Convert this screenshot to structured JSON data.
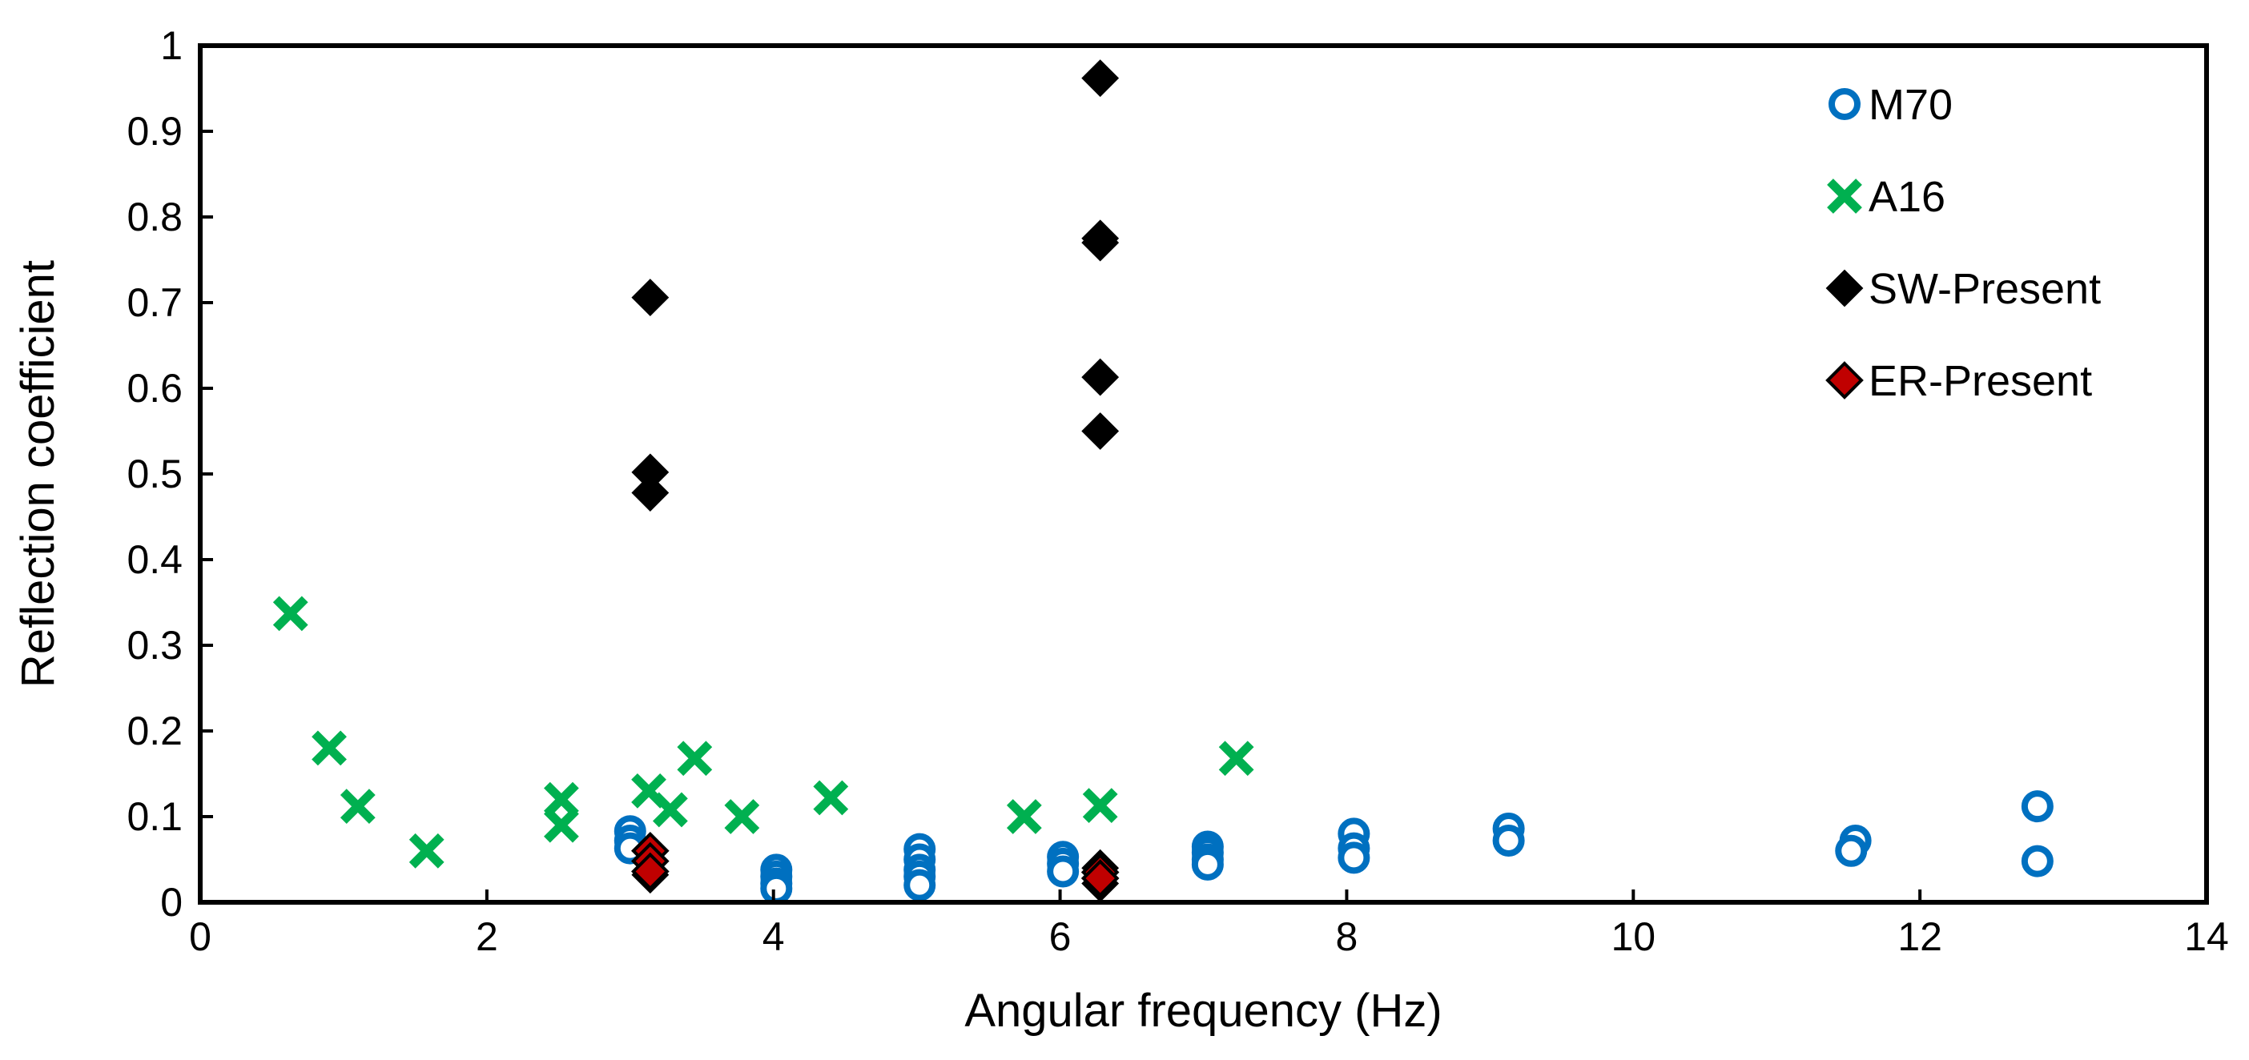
{
  "chart_data": {
    "type": "scatter",
    "xlabel": "Angular frequency (Hz)",
    "ylabel": "Reflection coefficient",
    "xlim": [
      0,
      14
    ],
    "ylim": [
      0,
      1
    ],
    "x_ticks": [
      0,
      2,
      4,
      6,
      8,
      10,
      12,
      14
    ],
    "y_ticks": [
      0,
      0.1,
      0.2,
      0.3,
      0.4,
      0.5,
      0.6,
      0.7,
      0.8,
      0.9,
      1
    ],
    "x_tick_labels": [
      "0",
      "2",
      "4",
      "6",
      "8",
      "10",
      "12",
      "14"
    ],
    "y_tick_labels": [
      "0",
      "0.1",
      "0.2",
      "0.3",
      "0.4",
      "0.5",
      "0.6",
      "0.7",
      "0.8",
      "0.9",
      "1"
    ],
    "grid": false,
    "legend_position": "top-right",
    "series": [
      {
        "name": "M70",
        "marker": "open-circle",
        "color": "#0070C0",
        "points": [
          [
            3.0,
            0.083
          ],
          [
            3.0,
            0.072
          ],
          [
            3.0,
            0.063
          ],
          [
            4.02,
            0.038
          ],
          [
            4.02,
            0.03
          ],
          [
            4.02,
            0.022
          ],
          [
            4.02,
            0.016
          ],
          [
            5.02,
            0.062
          ],
          [
            5.02,
            0.05
          ],
          [
            5.02,
            0.038
          ],
          [
            5.02,
            0.03
          ],
          [
            5.02,
            0.02
          ],
          [
            6.02,
            0.053
          ],
          [
            6.02,
            0.045
          ],
          [
            6.02,
            0.036
          ],
          [
            7.03,
            0.065
          ],
          [
            7.03,
            0.058
          ],
          [
            7.03,
            0.05
          ],
          [
            7.03,
            0.044
          ],
          [
            8.05,
            0.08
          ],
          [
            8.05,
            0.063
          ],
          [
            8.05,
            0.052
          ],
          [
            9.13,
            0.086
          ],
          [
            9.13,
            0.072
          ],
          [
            11.55,
            0.072
          ],
          [
            11.52,
            0.06
          ],
          [
            12.82,
            0.112
          ],
          [
            12.82,
            0.048
          ]
        ]
      },
      {
        "name": "A16",
        "marker": "x",
        "color": "#00B050",
        "points": [
          [
            0.63,
            0.337
          ],
          [
            0.9,
            0.18
          ],
          [
            1.1,
            0.112
          ],
          [
            1.58,
            0.06
          ],
          [
            2.52,
            0.12
          ],
          [
            2.52,
            0.09
          ],
          [
            3.13,
            0.13
          ],
          [
            3.28,
            0.108
          ],
          [
            3.45,
            0.168
          ],
          [
            3.78,
            0.1
          ],
          [
            4.4,
            0.122
          ],
          [
            5.75,
            0.1
          ],
          [
            6.28,
            0.113
          ],
          [
            7.23,
            0.168
          ]
        ]
      },
      {
        "name": "SW-Present",
        "marker": "diamond",
        "color": "#000000",
        "points": [
          [
            3.14,
            0.706
          ],
          [
            3.14,
            0.502
          ],
          [
            3.14,
            0.478
          ],
          [
            3.14,
            0.032
          ],
          [
            6.28,
            0.962
          ],
          [
            6.28,
            0.775
          ],
          [
            6.28,
            0.77
          ],
          [
            6.28,
            0.613
          ],
          [
            6.28,
            0.55
          ],
          [
            6.28,
            0.04
          ],
          [
            6.28,
            0.022
          ]
        ]
      },
      {
        "name": "ER-Present",
        "marker": "filled-diamond",
        "color": "#C00000",
        "points": [
          [
            3.14,
            0.06
          ],
          [
            3.14,
            0.048
          ],
          [
            3.14,
            0.036
          ],
          [
            6.28,
            0.035
          ],
          [
            6.28,
            0.028
          ]
        ]
      }
    ]
  }
}
